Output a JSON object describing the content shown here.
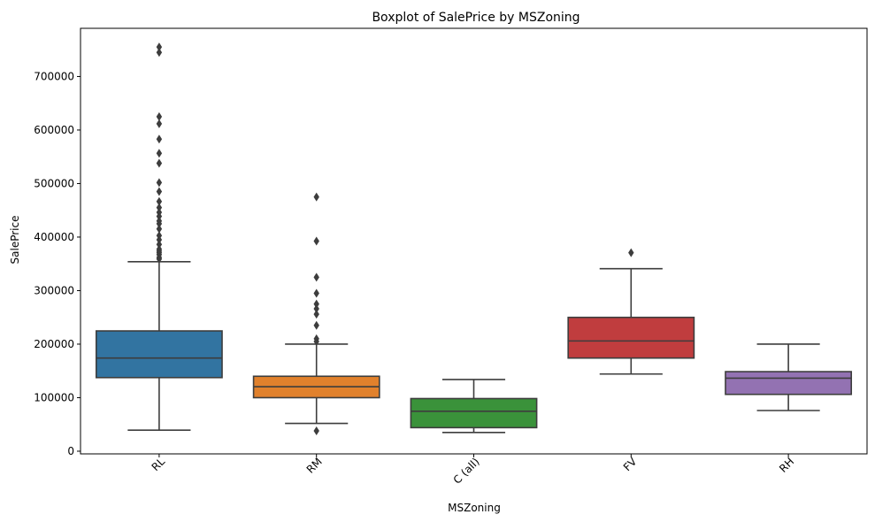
{
  "chart_data": {
    "type": "boxplot",
    "title": "Boxplot of SalePrice by MSZoning",
    "xlabel": "MSZoning",
    "ylabel": "SalePrice",
    "ylim": [
      -5000,
      790000
    ],
    "yticks": [
      0,
      100000,
      200000,
      300000,
      400000,
      500000,
      600000,
      700000
    ],
    "ytick_labels": [
      "0",
      "100000",
      "200000",
      "300000",
      "400000",
      "500000",
      "600000",
      "700000"
    ],
    "grid": false,
    "categories": [
      "RL",
      "RM",
      "C (all)",
      "FV",
      "RH"
    ],
    "boxes": [
      {
        "name": "RL",
        "color": "#3274a1",
        "whisker_low": 39300,
        "q1": 137500,
        "median": 174000,
        "q3": 224700,
        "whisker_high": 354000,
        "outliers": [
          755000,
          745000,
          625000,
          611657,
          582933,
          556581,
          538000,
          501837,
          485000,
          466500,
          455000,
          446261,
          438780,
          430000,
          424870,
          415298,
          402861,
          395000,
          386250,
          377500,
          374000,
          370878,
          367294,
          361919,
          359100
        ]
      },
      {
        "name": "RM",
        "color": "#e1812c",
        "whisker_low": 52000,
        "q1": 100000,
        "median": 120500,
        "q3": 140000,
        "whisker_high": 200000,
        "outliers": [
          37900,
          475000,
          392500,
          325000,
          295000,
          274970,
          265979,
          256000,
          235000,
          210000,
          205000
        ]
      },
      {
        "name": "C (all)",
        "color": "#3a923a",
        "whisker_low": 34900,
        "q1": 43998,
        "median": 74700,
        "q3": 98332,
        "whisker_high": 133900,
        "outliers": []
      },
      {
        "name": "FV",
        "color": "#c03d3e",
        "whisker_low": 144152,
        "q1": 174000,
        "median": 205950,
        "q3": 250000,
        "whisker_high": 341000,
        "outliers": [
          370878
        ]
      },
      {
        "name": "RH",
        "color": "#9372b2",
        "whisker_low": 76000,
        "q1": 106150,
        "median": 136500,
        "q3": 148608,
        "whisker_high": 200000,
        "outliers": []
      }
    ]
  }
}
